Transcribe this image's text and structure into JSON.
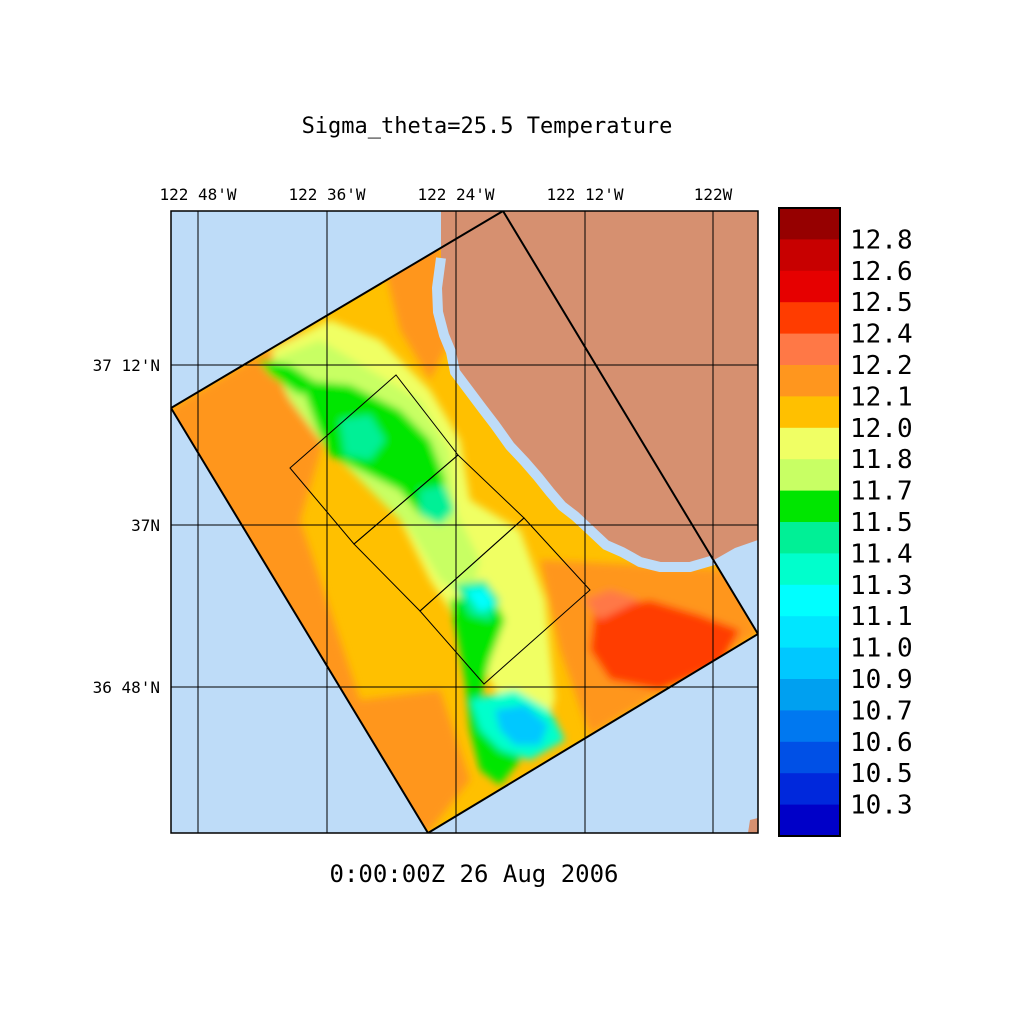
{
  "title": "Sigma_theta=25.5 Temperature",
  "timestamp": "0:00:00Z  26 Aug 2006",
  "map": {
    "lon_labels": [
      "122 48'W",
      "122 36'W",
      "122 24'W",
      "122 12'W",
      "122W"
    ],
    "lat_labels": [
      "37 12'N",
      "37N",
      "36 48'N"
    ],
    "colors": {
      "ocean": "#bedcf8",
      "land": "#d69070",
      "grid": "#000000"
    }
  },
  "colorbar": {
    "labels": [
      "12.8",
      "12.6",
      "12.5",
      "12.4",
      "12.2",
      "12.1",
      "12.0",
      "11.8",
      "11.7",
      "11.5",
      "11.4",
      "11.3",
      "11.1",
      "11.0",
      "10.9",
      "10.7",
      "10.6",
      "10.5",
      "10.3"
    ],
    "colors": [
      "#960000",
      "#c80000",
      "#e60000",
      "#ff3c00",
      "#ff7846",
      "#ff961e",
      "#ffc000",
      "#f0ff64",
      "#c8ff64",
      "#00e600",
      "#00f096",
      "#00ffcc",
      "#00ffff",
      "#00e6ff",
      "#00c8ff",
      "#00a0f0",
      "#0078f0",
      "#0050e6",
      "#0028dc",
      "#0000c8"
    ]
  },
  "chart_data": {
    "type": "heatmap",
    "variable": "Temperature",
    "surface": "Sigma_theta=25.5",
    "time": "0:00:00Z  26 Aug 2006",
    "lon_ticks": [
      "122 48'W",
      "122 36'W",
      "122 24'W",
      "122 12'W",
      "122W"
    ],
    "lat_ticks": [
      "37 12'N",
      "37N",
      "36 48'N"
    ],
    "colorbar_range": [
      10.3,
      12.8
    ],
    "colorbar_ticks": [
      12.8,
      12.6,
      12.5,
      12.4,
      12.2,
      12.1,
      12.0,
      11.8,
      11.7,
      11.5,
      11.4,
      11.3,
      11.1,
      11.0,
      10.9,
      10.7,
      10.6,
      10.5,
      10.3
    ]
  }
}
